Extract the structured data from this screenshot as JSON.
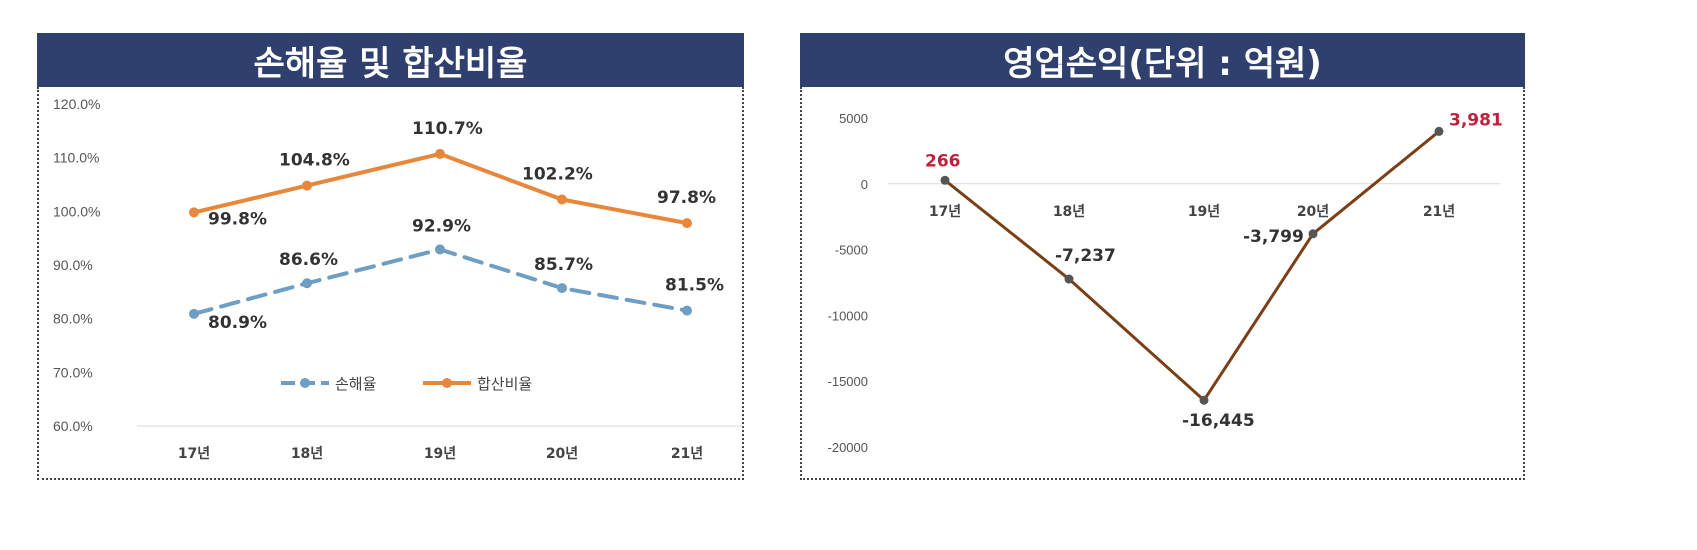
{
  "colors": {
    "header_bg": "#2f3f6e",
    "loss_ratio": "#6f9ec4",
    "combined_ratio": "#e8873c",
    "operating_line": "#7a3f16",
    "highlight_label": "#c0203a"
  },
  "chart_data": [
    {
      "type": "line",
      "title": "손해율 및 합산비율",
      "categories": [
        "17년",
        "18년",
        "19년",
        "20년",
        "21년"
      ],
      "yticks": [
        "120.0%",
        "110.0%",
        "100.0%",
        "90.0%",
        "80.0%",
        "70.0%",
        "60.0%"
      ],
      "ylim": [
        60,
        120
      ],
      "legend_position": "inside-bottom-right",
      "series": [
        {
          "name": "손해율",
          "style": "dashed",
          "values": [
            80.9,
            86.6,
            92.9,
            85.7,
            81.5
          ],
          "labels": [
            "80.9%",
            "86.6%",
            "92.9%",
            "85.7%",
            "81.5%"
          ]
        },
        {
          "name": "합산비율",
          "style": "solid",
          "values": [
            99.8,
            104.8,
            110.7,
            102.2,
            97.8
          ],
          "labels": [
            "99.8%",
            "104.8%",
            "110.7%",
            "102.2%",
            "97.8%"
          ]
        }
      ]
    },
    {
      "type": "line",
      "title": "영업손익(단위 : 억원)",
      "categories": [
        "17년",
        "18년",
        "19년",
        "20년",
        "21년"
      ],
      "yticks": [
        "5000",
        "0",
        "-5000",
        "-10000",
        "-15000",
        "-20000"
      ],
      "ylim": [
        -20000,
        5000
      ],
      "series": [
        {
          "values": [
            266,
            -7237,
            -16445,
            -3799,
            3981
          ],
          "labels": [
            "266",
            "-7,237",
            "-16,445",
            "-3,799",
            "3,981"
          ],
          "highlighted": [
            true,
            false,
            false,
            false,
            true
          ]
        }
      ]
    }
  ]
}
